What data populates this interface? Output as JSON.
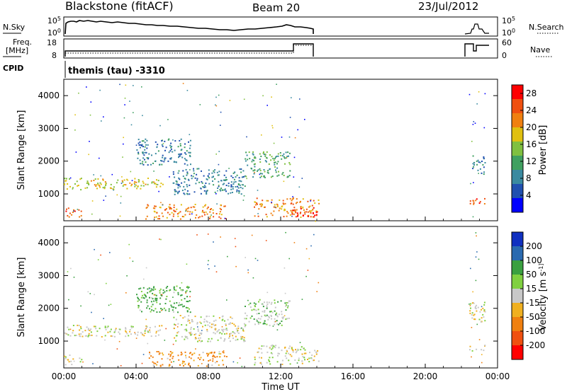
{
  "header": {
    "station": "Blackstone (fitACF)",
    "beam": "Beam 20",
    "date": "23/Jul/2012"
  },
  "top_panels": {
    "nsky_label": "N.Sky",
    "nsky_ticks": [
      "10^5",
      "10^0"
    ],
    "nsearch_label": "N.Search",
    "nsearch_ticks": [
      "10^5",
      "10^0"
    ],
    "freq_label_1": "Freq.",
    "freq_label_2": "[MHz]",
    "freq_ticks": [
      "18",
      "8"
    ],
    "nave_label": "Nave",
    "nave_ticks": [
      "60",
      "0"
    ],
    "cpid_label": "CPID",
    "cpid_value": "themis (tau) -3310"
  },
  "colors": {
    "power_scale": [
      "#0000ff",
      "#2050b0",
      "#3a8aa0",
      "#40a060",
      "#80c040",
      "#e0c010",
      "#f08010",
      "#f05010",
      "#ff0000"
    ],
    "velocity_scale": [
      "#1030c0",
      "#2a6ab0",
      "#3aa040",
      "#80d040",
      "#c8c8c8",
      "#f0b020",
      "#f08010",
      "#f05010",
      "#ff0000"
    ]
  },
  "chart_data": [
    {
      "type": "heatmap",
      "title": "",
      "xlabel": "",
      "ylabel": "Slant Range [km]",
      "xlim": [
        "00:00",
        "24:00"
      ],
      "ylim": [
        180,
        4500
      ],
      "xticks": [
        "00:00",
        "04:00",
        "08:00",
        "12:00",
        "16:00",
        "20:00",
        "00:00"
      ],
      "yticks": [
        "1000",
        "2000",
        "3000",
        "4000"
      ],
      "colorbar": {
        "label": "Power [dB]",
        "ticks": [
          "4",
          "8",
          "12",
          "16",
          "20",
          "24",
          "28"
        ],
        "range": [
          0,
          30
        ]
      },
      "data_coverage": [
        {
          "start_hour": 0.0,
          "end_hour": 14.1,
          "min_range": 180,
          "max_range": 3200
        },
        {
          "start_hour": 22.4,
          "end_hour": 23.3,
          "min_range": 400,
          "max_range": 2500
        }
      ],
      "echo_regions": [
        {
          "x0": 0.0,
          "x1": 5.5,
          "y0": 1150,
          "y1": 1500,
          "level": 18
        },
        {
          "x0": 0.0,
          "x1": 1.0,
          "y0": 300,
          "y1": 600,
          "level": 24
        },
        {
          "x0": 4.0,
          "x1": 7.0,
          "y0": 1900,
          "y1": 2700,
          "level": 8
        },
        {
          "x0": 4.5,
          "x1": 9.0,
          "y0": 250,
          "y1": 700,
          "level": 22
        },
        {
          "x0": 6.0,
          "x1": 10.0,
          "y0": 1000,
          "y1": 1800,
          "level": 8
        },
        {
          "x0": 10.0,
          "x1": 12.5,
          "y0": 1500,
          "y1": 2300,
          "level": 12
        },
        {
          "x0": 10.5,
          "x1": 14.1,
          "y0": 300,
          "y1": 900,
          "level": 22
        },
        {
          "x0": 12.5,
          "x1": 14.1,
          "y0": 300,
          "y1": 600,
          "level": 28
        },
        {
          "x0": 22.4,
          "x1": 23.3,
          "y0": 700,
          "y1": 900,
          "level": 24
        },
        {
          "x0": 22.4,
          "x1": 23.3,
          "y0": 1600,
          "y1": 2200,
          "level": 8
        }
      ]
    },
    {
      "type": "heatmap",
      "title": "",
      "xlabel": "Time UT",
      "ylabel": "Slant Range [km]",
      "xlim": [
        "00:00",
        "24:00"
      ],
      "ylim": [
        180,
        4500
      ],
      "xticks": [
        "00:00",
        "04:00",
        "08:00",
        "12:00",
        "16:00",
        "20:00",
        "00:00"
      ],
      "yticks": [
        "1000",
        "2000",
        "3000",
        "4000"
      ],
      "colorbar": {
        "label": "Velocity [m s^-1]",
        "ticks": [
          "200",
          "100",
          "50",
          "15",
          "-15",
          "-50",
          "-100",
          "-200"
        ],
        "range": [
          -250,
          250
        ]
      },
      "echo_regions": [
        {
          "x0": 0.0,
          "x1": 5.5,
          "y0": 1150,
          "y1": 1500,
          "value": 0
        },
        {
          "x0": 0.0,
          "x1": 1.0,
          "y0": 300,
          "y1": 600,
          "value": 0
        },
        {
          "x0": 4.0,
          "x1": 7.0,
          "y0": 1900,
          "y1": 2700,
          "value": 40
        },
        {
          "x0": 4.5,
          "x1": 9.0,
          "y0": 250,
          "y1": 700,
          "value": -40
        },
        {
          "x0": 6.0,
          "x1": 10.0,
          "y0": 1000,
          "y1": 1800,
          "value": 0
        },
        {
          "x0": 10.0,
          "x1": 12.5,
          "y0": 1500,
          "y1": 2300,
          "value": 20
        },
        {
          "x0": 10.5,
          "x1": 14.1,
          "y0": 300,
          "y1": 900,
          "value": 0
        },
        {
          "x0": 22.4,
          "x1": 23.3,
          "y0": 700,
          "y1": 900,
          "value": 0
        },
        {
          "x0": 22.4,
          "x1": 23.3,
          "y0": 1600,
          "y1": 2200,
          "value": 0
        }
      ]
    }
  ]
}
